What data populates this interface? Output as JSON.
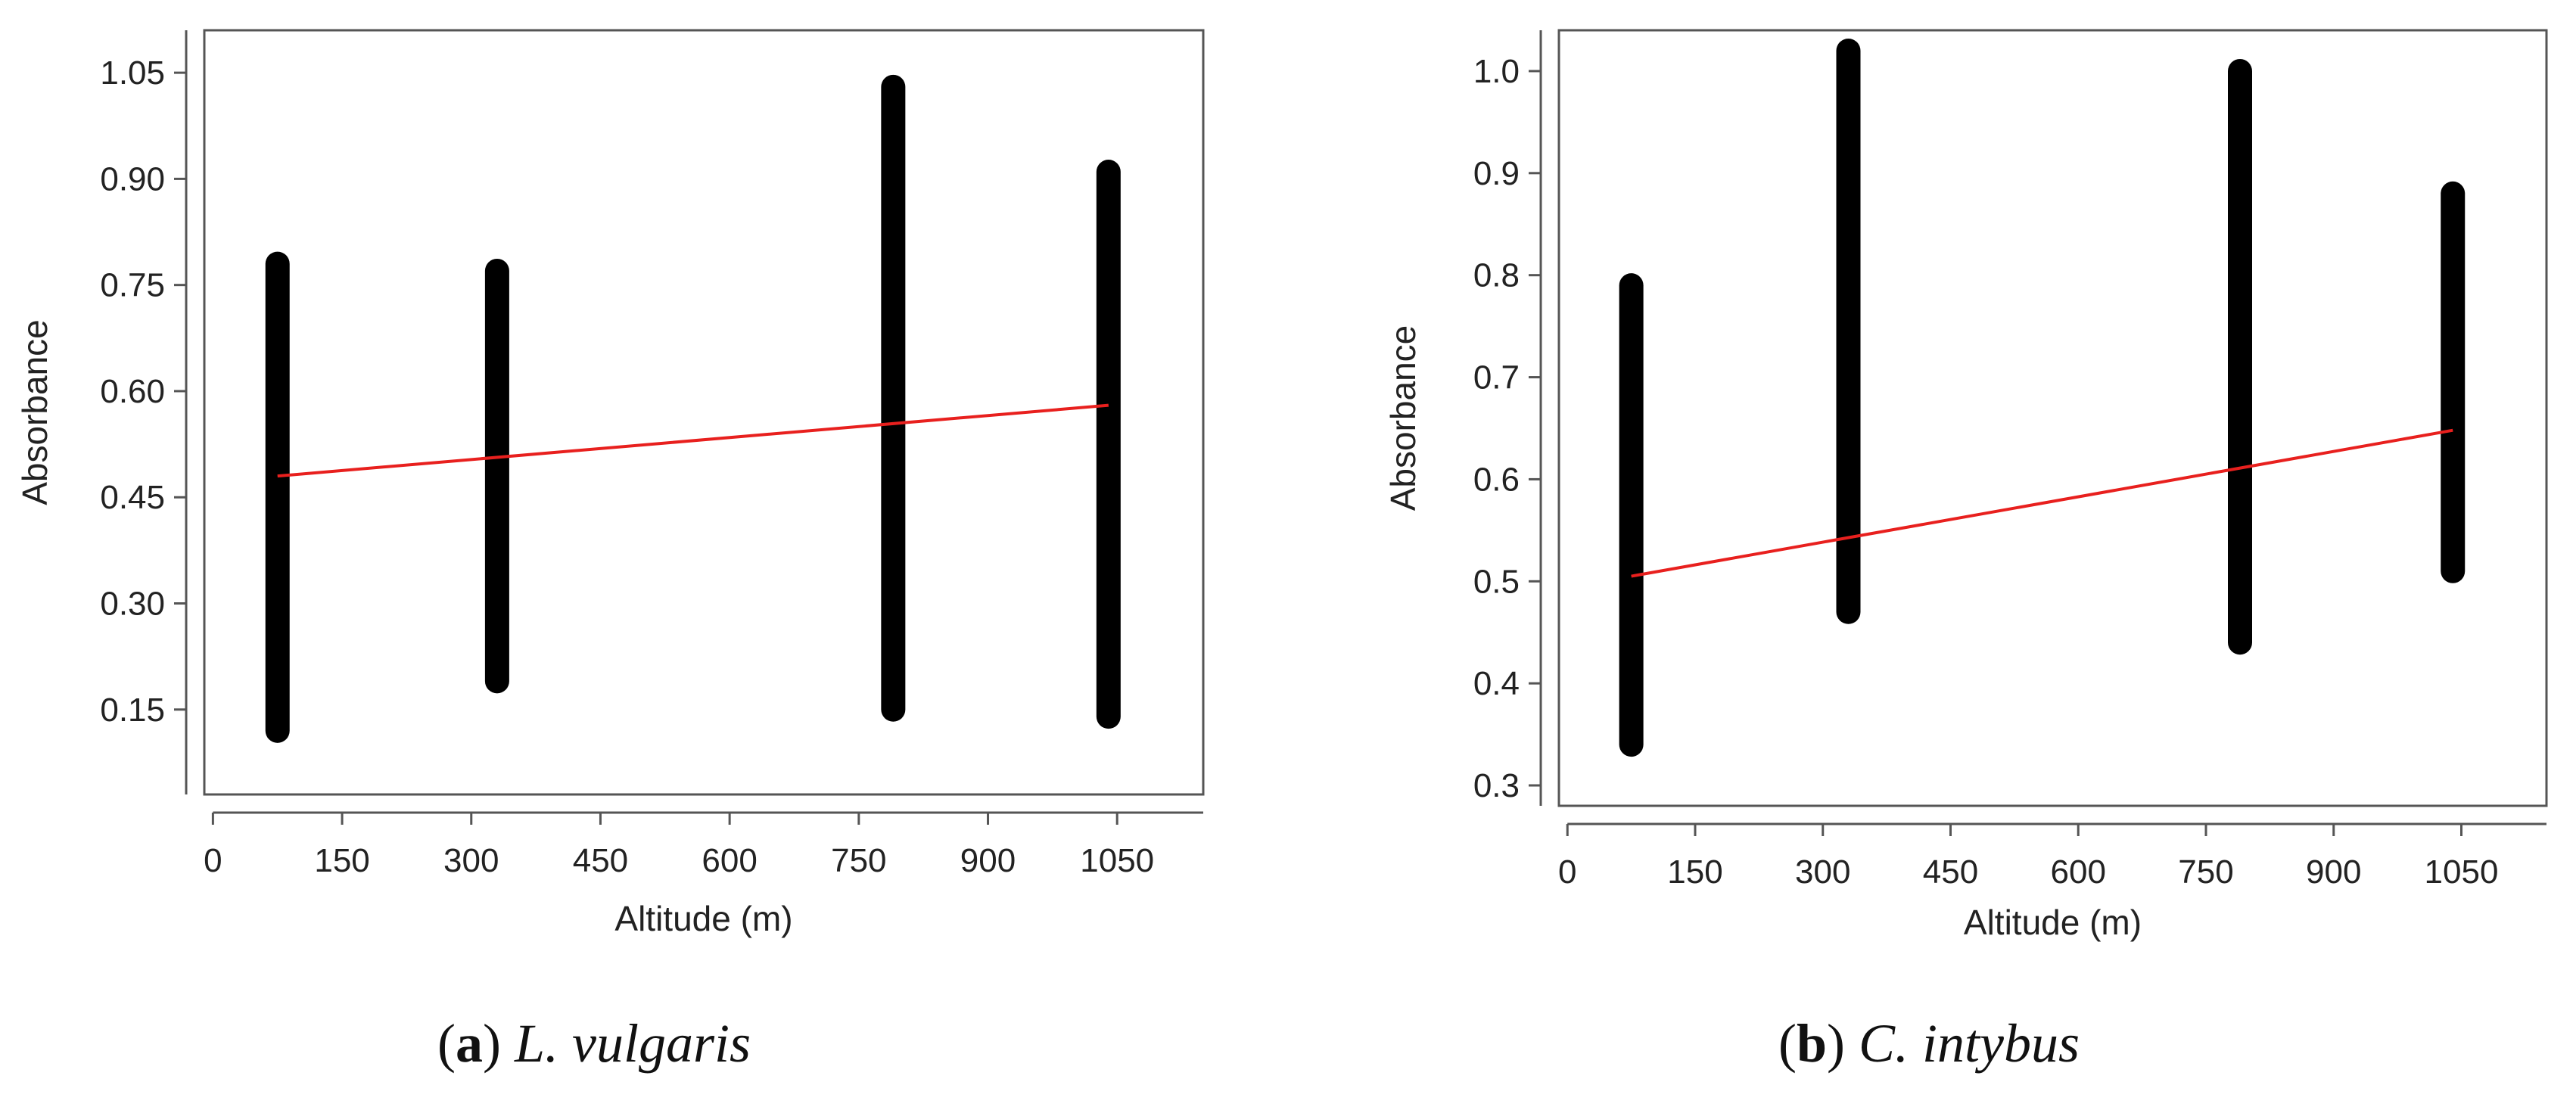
{
  "chart_data": [
    {
      "type": "scatter",
      "xlabel": "Altitude (m)",
      "ylabel": "Absorbance",
      "xlim": [
        -10,
        1150
      ],
      "ylim": [
        0.03,
        1.11
      ],
      "xticks": [
        0,
        150,
        300,
        450,
        600,
        750,
        900,
        1050
      ],
      "yticks": [
        0.15,
        0.3,
        0.45,
        0.6,
        0.75,
        0.9,
        1.05
      ],
      "yticklabels": [
        "0.15",
        "0.30",
        "0.45",
        "0.60",
        "0.75",
        "0.90",
        "1.05"
      ],
      "grid": false,
      "point_color": "#000000",
      "fit_color": "#e8201e",
      "series": [
        {
          "type": "scatter",
          "points": [
            {
              "x": 75,
              "ymin": 0.12,
              "ymax": 0.78
            },
            {
              "x": 330,
              "ymin": 0.19,
              "ymax": 0.77
            },
            {
              "x": 790,
              "ymin": 0.15,
              "ymax": 1.03
            },
            {
              "x": 1040,
              "ymin": 0.14,
              "ymax": 0.91
            }
          ]
        },
        {
          "type": "line",
          "x": [
            75,
            1040
          ],
          "y": [
            0.48,
            0.58
          ]
        }
      ],
      "caption": {
        "letter": "a",
        "species": "L. vulgaris"
      }
    },
    {
      "type": "scatter",
      "xlabel": "Altitude (m)",
      "ylabel": "Absorbance",
      "xlim": [
        -10,
        1150
      ],
      "ylim": [
        0.28,
        1.04
      ],
      "xticks": [
        0,
        150,
        300,
        450,
        600,
        750,
        900,
        1050
      ],
      "yticks": [
        0.3,
        0.4,
        0.5,
        0.6,
        0.7,
        0.8,
        0.9,
        1.0
      ],
      "yticklabels": [
        "0.3",
        "0.4",
        "0.5",
        "0.6",
        "0.7",
        "0.8",
        "0.9",
        "1.0"
      ],
      "grid": false,
      "point_color": "#000000",
      "fit_color": "#e8201e",
      "series": [
        {
          "type": "scatter",
          "points": [
            {
              "x": 75,
              "ymin": 0.34,
              "ymax": 0.79
            },
            {
              "x": 330,
              "ymin": 0.47,
              "ymax": 1.02
            },
            {
              "x": 790,
              "ymin": 0.44,
              "ymax": 1.0
            },
            {
              "x": 1040,
              "ymin": 0.51,
              "ymax": 0.88
            }
          ]
        },
        {
          "type": "line",
          "x": [
            75,
            1040
          ],
          "y": [
            0.505,
            0.648
          ]
        }
      ],
      "caption": {
        "letter": "b",
        "species": "C. intybus"
      }
    }
  ],
  "captions": [
    {
      "open": "(",
      "letter": "a",
      "close": ") ",
      "species": "L. vulgaris"
    },
    {
      "open": "(",
      "letter": "b",
      "close": ") ",
      "species": "C. intybus"
    }
  ]
}
